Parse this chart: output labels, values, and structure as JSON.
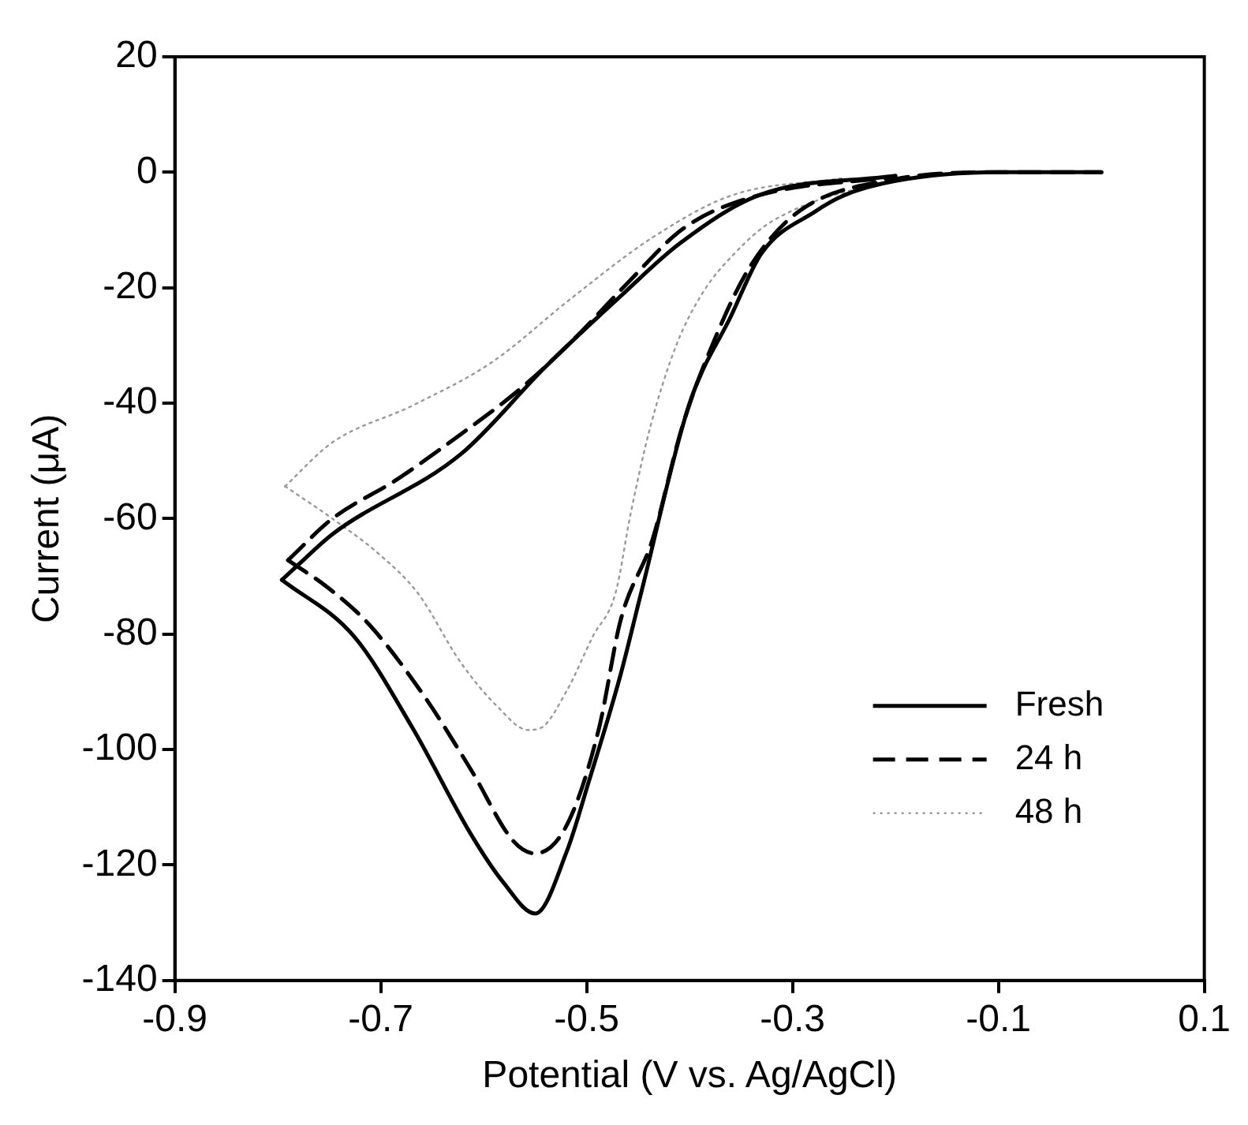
{
  "chart_data": {
    "type": "line",
    "xlabel": "Potential (V vs. Ag/AgCl)",
    "ylabel": "Current (μA)",
    "xlim": [
      -0.9,
      0.1
    ],
    "xticks": [
      -0.9,
      -0.7,
      -0.5,
      -0.3,
      -0.1,
      0.1
    ],
    "ylim": [
      -140,
      20
    ],
    "yticks": [
      -140,
      -120,
      -100,
      -80,
      -60,
      -40,
      -20,
      0,
      20
    ],
    "grid": false,
    "legend": "bottom right",
    "marker": "none",
    "series": [
      {
        "name": "Fresh",
        "color": "#000000",
        "line_style": "solid",
        "x": [
          -0.796,
          -0.726,
          -0.669,
          -0.612,
          -0.581,
          -0.55,
          -0.519,
          -0.498,
          -0.467,
          -0.447,
          -0.4,
          -0.36,
          -0.33,
          -0.278,
          -0.25,
          -0.2,
          -0.1,
          0
        ],
        "values": [
          -70.6,
          -80.4,
          -96.3,
          -114.8,
          -123,
          -128.4,
          -117.5,
          -105.6,
          -87,
          -72.8,
          -40,
          -25,
          -14,
          -6.8,
          -4,
          -1.5,
          0,
          0
        ]
      },
      {
        "color": "#000000",
        "line_style": "solid",
        "x": [
          -0.796,
          -0.782,
          -0.747,
          -0.622,
          -0.54,
          -0.463,
          -0.41,
          -0.333,
          -0.2
        ],
        "values": [
          -70.6,
          -68.3,
          -62.7,
          -48.8,
          -33.7,
          -20.8,
          -12.4,
          -4,
          -0.6
        ]
      },
      {
        "name": "24 h",
        "color": "#000000",
        "line_style": "dashed",
        "x": [
          -0.79,
          -0.751,
          -0.711,
          -0.658,
          -0.612,
          -0.571,
          -0.55,
          -0.519,
          -0.488,
          -0.467,
          -0.436,
          -0.407,
          -0.371,
          -0.34,
          -0.294,
          -0.2,
          -0.1,
          0
        ],
        "values": [
          -67.2,
          -72,
          -78.4,
          -90.7,
          -103.6,
          -115.9,
          -118,
          -113,
          -96.3,
          -77.6,
          -63.6,
          -44,
          -27,
          -16,
          -6.8,
          -1.2,
          0,
          0
        ]
      },
      {
        "color": "#000000",
        "line_style": "dashed",
        "x": [
          -0.79,
          -0.747,
          -0.685,
          -0.627,
          -0.565,
          -0.514,
          -0.463,
          -0.405,
          -0.333,
          -0.2
        ],
        "values": [
          -67.2,
          -60,
          -53.3,
          -46,
          -37.6,
          -29.2,
          -19.7,
          -9.6,
          -4,
          -0.8
        ]
      },
      {
        "name": "48 h",
        "color": "#999999",
        "line_style": "dotted",
        "x": [
          -0.793,
          -0.778,
          -0.747,
          -0.7,
          -0.664,
          -0.622,
          -0.587,
          -0.557,
          -0.545,
          -0.519,
          -0.494,
          -0.472,
          -0.457,
          -0.438,
          -0.413,
          -0.387,
          -0.356,
          -0.32,
          -0.2,
          -0.1,
          0
        ],
        "values": [
          -54.4,
          -56.2,
          -60,
          -66.4,
          -72.9,
          -85,
          -92.5,
          -96.6,
          -96.3,
          -89.7,
          -80.4,
          -72.9,
          -58.9,
          -44,
          -30,
          -20.8,
          -14,
          -8.5,
          -1.5,
          0,
          0
        ]
      },
      {
        "color": "#999999",
        "line_style": "dotted",
        "x": [
          -0.793,
          -0.747,
          -0.669,
          -0.592,
          -0.514,
          -0.436,
          -0.359,
          -0.25
        ],
        "values": [
          -54.4,
          -46.8,
          -40.4,
          -32.9,
          -21.7,
          -11.3,
          -4,
          -1
        ]
      }
    ]
  }
}
